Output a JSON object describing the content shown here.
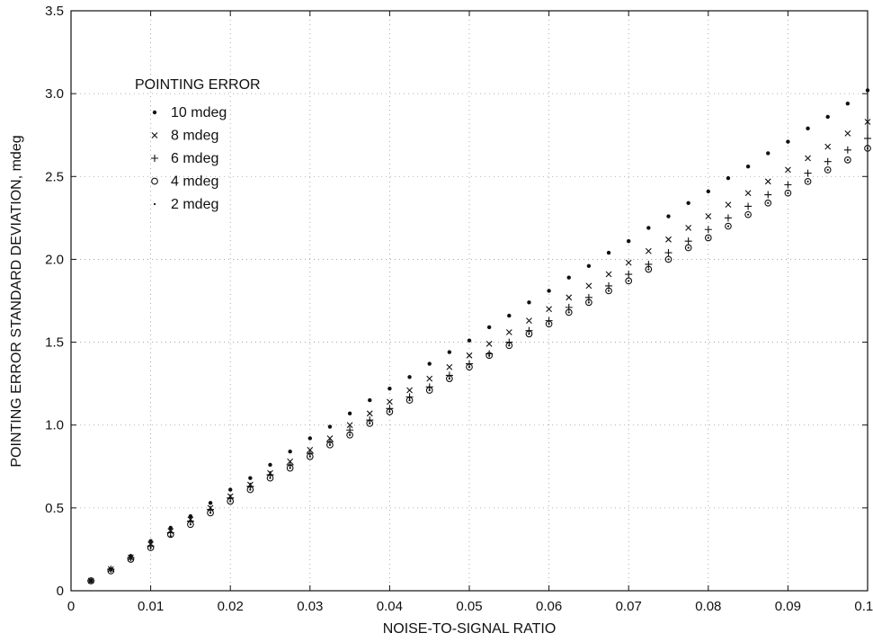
{
  "chart_data": {
    "type": "scatter",
    "title": "",
    "xlabel": "NOISE-TO-SIGNAL RATIO",
    "ylabel": "POINTING ERROR STANDARD DEVIATION, mdeg",
    "xlim": [
      0,
      0.1
    ],
    "ylim": [
      0,
      3.5
    ],
    "grid": true,
    "legend_title": "POINTING ERROR",
    "legend_position": "top-left",
    "x_ticks": [
      "0",
      "0.01",
      "0.02",
      "0.03",
      "0.04",
      "0.05",
      "0.06",
      "0.07",
      "0.08",
      "0.09",
      "0.10"
    ],
    "x_tick_values": [
      0,
      0.01,
      0.02,
      0.03,
      0.04,
      0.05,
      0.06,
      0.07,
      0.08,
      0.09,
      0.1
    ],
    "y_ticks": [
      "0",
      "0.5",
      "1.0",
      "1.5",
      "2.0",
      "2.5",
      "3.0",
      "3.5"
    ],
    "y_tick_values": [
      0,
      0.5,
      1.0,
      1.5,
      2.0,
      2.5,
      3.0,
      3.5
    ],
    "x": [
      0.0025,
      0.005,
      0.0075,
      0.01,
      0.0125,
      0.015,
      0.0175,
      0.02,
      0.0225,
      0.025,
      0.0275,
      0.03,
      0.0325,
      0.035,
      0.0375,
      0.04,
      0.0425,
      0.045,
      0.0475,
      0.05,
      0.0525,
      0.055,
      0.0575,
      0.06,
      0.0625,
      0.065,
      0.0675,
      0.07,
      0.0725,
      0.075,
      0.0775,
      0.08,
      0.0825,
      0.085,
      0.0875,
      0.09,
      0.0925,
      0.095,
      0.0975,
      0.1
    ],
    "series": [
      {
        "name": "10 mdeg",
        "marker": "dot",
        "values": [
          0.06,
          0.13,
          0.21,
          0.3,
          0.38,
          0.45,
          0.53,
          0.61,
          0.68,
          0.76,
          0.84,
          0.92,
          0.99,
          1.07,
          1.15,
          1.22,
          1.29,
          1.37,
          1.44,
          1.51,
          1.59,
          1.66,
          1.74,
          1.81,
          1.89,
          1.96,
          2.04,
          2.11,
          2.19,
          2.26,
          2.34,
          2.41,
          2.49,
          2.56,
          2.64,
          2.71,
          2.79,
          2.86,
          2.94,
          3.02
        ]
      },
      {
        "name": "8 mdeg",
        "marker": "x",
        "values": [
          0.06,
          0.13,
          0.2,
          0.28,
          0.36,
          0.43,
          0.5,
          0.57,
          0.64,
          0.71,
          0.78,
          0.85,
          0.92,
          1.0,
          1.07,
          1.14,
          1.21,
          1.28,
          1.35,
          1.42,
          1.49,
          1.56,
          1.63,
          1.7,
          1.77,
          1.84,
          1.91,
          1.98,
          2.05,
          2.12,
          2.19,
          2.26,
          2.33,
          2.4,
          2.47,
          2.54,
          2.61,
          2.68,
          2.76,
          2.83
        ]
      },
      {
        "name": "6 mdeg",
        "marker": "plus",
        "values": [
          0.06,
          0.13,
          0.2,
          0.27,
          0.35,
          0.42,
          0.49,
          0.56,
          0.63,
          0.7,
          0.76,
          0.83,
          0.9,
          0.97,
          1.03,
          1.1,
          1.17,
          1.23,
          1.3,
          1.37,
          1.43,
          1.5,
          1.57,
          1.63,
          1.71,
          1.77,
          1.84,
          1.91,
          1.97,
          2.04,
          2.11,
          2.18,
          2.25,
          2.32,
          2.39,
          2.45,
          2.52,
          2.59,
          2.66,
          2.73
        ]
      },
      {
        "name": "4 mdeg",
        "marker": "circle",
        "values": [
          0.06,
          0.12,
          0.19,
          0.26,
          0.34,
          0.4,
          0.47,
          0.54,
          0.61,
          0.68,
          0.74,
          0.81,
          0.88,
          0.94,
          1.01,
          1.08,
          1.15,
          1.21,
          1.28,
          1.35,
          1.42,
          1.48,
          1.55,
          1.61,
          1.68,
          1.74,
          1.81,
          1.87,
          1.94,
          2.0,
          2.07,
          2.13,
          2.2,
          2.27,
          2.34,
          2.4,
          2.47,
          2.54,
          2.6,
          2.67
        ]
      },
      {
        "name": "2 mdeg",
        "marker": "point",
        "values": [
          0.06,
          0.12,
          0.19,
          0.26,
          0.33,
          0.4,
          0.47,
          0.54,
          0.61,
          0.68,
          0.74,
          0.81,
          0.88,
          0.94,
          1.01,
          1.08,
          1.15,
          1.21,
          1.28,
          1.35,
          1.42,
          1.48,
          1.55,
          1.61,
          1.68,
          1.74,
          1.81,
          1.87,
          1.94,
          2.0,
          2.07,
          2.13,
          2.2,
          2.27,
          2.34,
          2.4,
          2.47,
          2.54,
          2.6,
          2.67
        ]
      }
    ]
  }
}
